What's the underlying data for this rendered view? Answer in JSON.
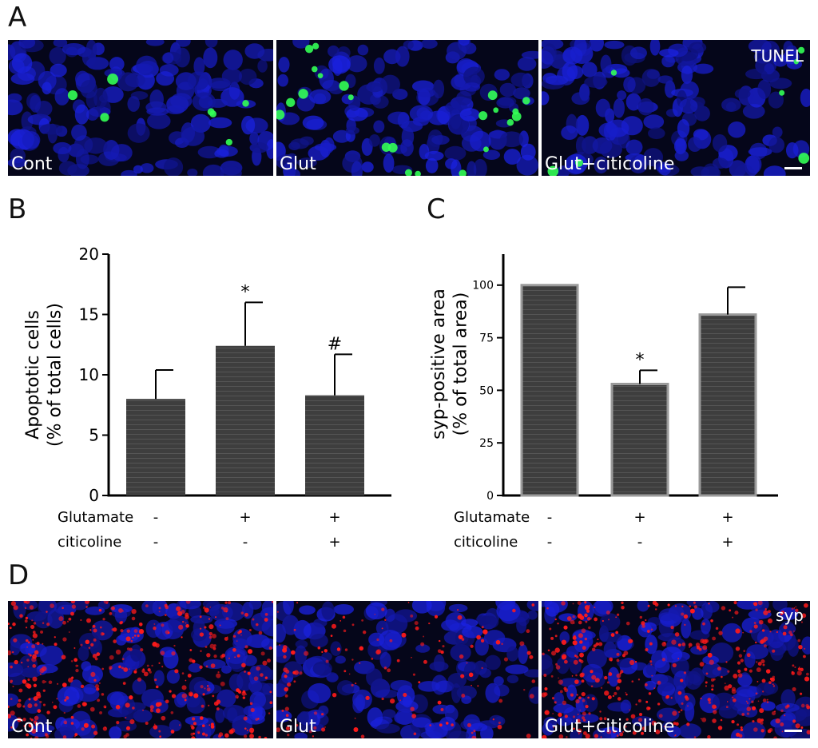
{
  "panels": {
    "a": "A",
    "b": "B",
    "c": "C",
    "d": "D"
  },
  "tunel_row": {
    "stain_label": "TUNEL",
    "images": [
      {
        "label": "Cont"
      },
      {
        "label": "Glut"
      },
      {
        "label": "Glut+citicoline"
      }
    ]
  },
  "syp_row": {
    "stain_label": "syp",
    "images": [
      {
        "label": "Cont"
      },
      {
        "label": "Glut"
      },
      {
        "label": "Glut+citicoline"
      }
    ]
  },
  "colors": {
    "bar_fill": "#3e3e3e",
    "bar_stripe": "#555555",
    "bar_outline_c": "#9a9a9a",
    "nuclei": "#1a22c8",
    "tunel": "#33ff55",
    "syp": "#ff1a1a"
  },
  "chart_data": [
    {
      "type": "bar",
      "panel": "B",
      "ylabel_line1": "Apoptotic cells",
      "ylabel_line2": "(% of total cells)",
      "ylim": [
        0,
        20
      ],
      "yticks": [
        "0",
        "5",
        "10",
        "15",
        "20"
      ],
      "ytick_values": [
        0,
        5,
        10,
        15,
        20
      ],
      "values": [
        8.0,
        12.4,
        8.3
      ],
      "errors": [
        2.4,
        3.6,
        3.4
      ],
      "significance": [
        "",
        "*",
        "#"
      ],
      "conditions": [
        {
          "name": "Glutamate",
          "marks": [
            "-",
            "+",
            "+"
          ]
        },
        {
          "name": "citicoline",
          "marks": [
            "-",
            "-",
            "+"
          ]
        }
      ],
      "grid": false
    },
    {
      "type": "bar",
      "panel": "C",
      "ylabel_line1": "syp-positive area",
      "ylabel_line2": "(% of total area)",
      "ylim": [
        0,
        125
      ],
      "yticks": [
        "0",
        "25",
        "50",
        "75",
        "100"
      ],
      "ytick_values": [
        0,
        25,
        50,
        75,
        100
      ],
      "values": [
        100,
        53,
        86
      ],
      "errors": [
        0,
        6.5,
        13
      ],
      "significance": [
        "",
        "*",
        ""
      ],
      "conditions": [
        {
          "name": "Glutamate",
          "marks": [
            "-",
            "+",
            "+"
          ]
        },
        {
          "name": "citicoline",
          "marks": [
            "-",
            "-",
            "+"
          ]
        }
      ],
      "grid": false
    }
  ]
}
